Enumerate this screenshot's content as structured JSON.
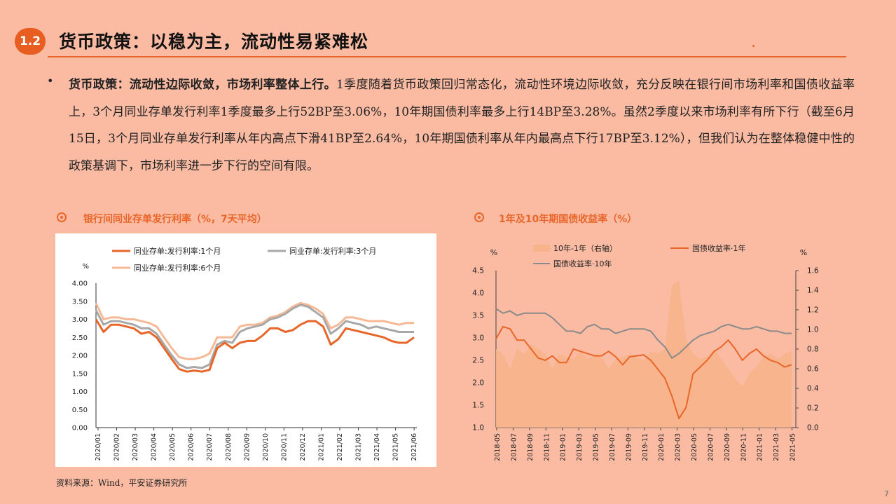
{
  "section_number": "1.2",
  "title": "货币政策：以稳为主，流动性易紧难松",
  "bullet": "•",
  "paragraph": {
    "bold": "货币政策：流动性边际收敛，市场利率整体上行。",
    "text": "1季度随着货币政策回归常态化，流动性环境边际收敛，充分反映在银行间市场利率和国债收益率上，3个月同业存单发行利率1季度最多上行52BP至3.06%，10年期国债利率最多上行14BP至3.28%。虽然2季度以来市场利率有所下行（截至6月15日，3个月同业存单发行利率从年内高点下滑41BP至2.64%，10年期国债利率从年内最高点下行17BP至3.12%），但我们认为在整体稳健中性的政策基调下，市场利率进一步下行的空间有限。"
  },
  "source": "资料来源：Wind，平安证券研究所",
  "page_number": "7",
  "colors": {
    "accent": "#e8662a",
    "gray": "#a8a8a8",
    "light_orange": "#f7b995",
    "area": "#f7b48a",
    "bg": "#fbbba3"
  },
  "chart_data": [
    {
      "type": "line",
      "title": "银行间同业存单发行利率（%，7天平均）",
      "ylabel": "%",
      "ylim": [
        0,
        4
      ],
      "yticks": [
        "0.00",
        "0.50",
        "1.00",
        "1.50",
        "2.00",
        "2.50",
        "3.00",
        "3.50",
        "4.00"
      ],
      "x_ticks": [
        "2020/01",
        "2020/02",
        "2020/03",
        "2020/04",
        "2020/05",
        "2020/06",
        "2020/07",
        "2020/08",
        "2020/09",
        "2020/10",
        "2020/11",
        "2020/12",
        "2021/01",
        "2021/02",
        "2021/03",
        "2021/04",
        "2021/05",
        "2021/06"
      ],
      "legend": "top",
      "series": [
        {
          "name": "同业存单:发行利率:1个月",
          "color": "#e8662a",
          "values": [
            3.0,
            2.65,
            2.85,
            2.85,
            2.8,
            2.75,
            2.6,
            2.65,
            2.5,
            2.2,
            1.9,
            1.62,
            1.55,
            1.58,
            1.55,
            1.6,
            2.2,
            2.35,
            2.2,
            2.35,
            2.4,
            2.4,
            2.55,
            2.75,
            2.75,
            2.65,
            2.7,
            2.85,
            2.95,
            2.95,
            2.8,
            2.3,
            2.45,
            2.75,
            2.7,
            2.65,
            2.6,
            2.55,
            2.5,
            2.4,
            2.35,
            2.35,
            2.5
          ]
        },
        {
          "name": "同业存单:发行利率:3个月",
          "color": "#a8a8a8",
          "values": [
            3.25,
            2.85,
            2.95,
            2.95,
            2.9,
            2.85,
            2.75,
            2.75,
            2.6,
            2.3,
            2.0,
            1.75,
            1.65,
            1.68,
            1.65,
            1.75,
            2.3,
            2.4,
            2.35,
            2.65,
            2.75,
            2.8,
            2.85,
            3.0,
            3.05,
            3.15,
            3.3,
            3.4,
            3.35,
            3.2,
            3.05,
            2.6,
            2.75,
            2.95,
            2.9,
            2.85,
            2.75,
            2.8,
            2.75,
            2.7,
            2.65,
            2.65,
            2.65
          ]
        },
        {
          "name": "同业存单:发行利率:6个月",
          "color": "#f7b995",
          "values": [
            3.45,
            3.0,
            3.05,
            3.05,
            3.0,
            3.0,
            2.95,
            2.9,
            2.8,
            2.5,
            2.2,
            1.95,
            1.9,
            1.9,
            1.95,
            2.05,
            2.5,
            2.5,
            2.5,
            2.8,
            2.85,
            2.85,
            2.9,
            3.05,
            3.1,
            3.2,
            3.35,
            3.45,
            3.4,
            3.3,
            3.15,
            2.75,
            2.85,
            3.05,
            3.05,
            3.0,
            2.95,
            2.95,
            2.95,
            2.9,
            2.85,
            2.9,
            2.9
          ]
        }
      ]
    },
    {
      "type": "line",
      "title": "1年及10年期国债收益率（%）",
      "ylabel_left": "%",
      "ylabel_right": "%",
      "ylim_left": [
        1.0,
        4.5
      ],
      "ylim_right": [
        0.0,
        1.6
      ],
      "yticks_left": [
        "1.0",
        "1.5",
        "2.0",
        "2.5",
        "3.0",
        "3.5",
        "4.0",
        "4.5"
      ],
      "yticks_right": [
        "0.0",
        "0.2",
        "0.4",
        "0.6",
        "0.8",
        "1.0",
        "1.2",
        "1.4",
        "1.6"
      ],
      "x_ticks": [
        "2018-05",
        "2018-07",
        "2018-09",
        "2018-11",
        "2019-01",
        "2019-03",
        "2019-05",
        "2019-07",
        "2019-09",
        "2019-11",
        "2020-01",
        "2020-03",
        "2020-05",
        "2020-07",
        "2020-09",
        "2020-11",
        "2021-01",
        "2021-03",
        "2021-05"
      ],
      "legend": "top",
      "series": [
        {
          "name": "10年-1年（右轴）",
          "type": "area",
          "axis": "right",
          "color": "#f7b48a",
          "values": [
            0.8,
            0.75,
            0.6,
            0.8,
            0.75,
            0.85,
            0.8,
            0.75,
            0.6,
            0.75,
            0.72,
            0.7,
            0.78,
            0.7,
            0.75,
            0.72,
            0.6,
            0.7,
            0.72,
            0.75,
            0.72,
            0.68,
            0.78,
            0.75,
            0.8,
            1.45,
            1.5,
            0.9,
            0.75,
            0.7,
            0.72,
            0.8,
            0.7,
            0.6,
            0.5,
            0.42,
            0.55,
            0.62,
            0.72,
            0.75,
            0.7,
            0.75,
            0.78
          ]
        },
        {
          "name": "国债收益率·1年",
          "axis": "left",
          "color": "#e8662a",
          "values": [
            2.98,
            3.25,
            3.2,
            2.95,
            2.95,
            2.75,
            2.55,
            2.5,
            2.6,
            2.45,
            2.45,
            2.75,
            2.7,
            2.65,
            2.6,
            2.6,
            2.7,
            2.58,
            2.4,
            2.58,
            2.6,
            2.62,
            2.5,
            2.3,
            2.1,
            1.7,
            1.2,
            1.45,
            2.2,
            2.35,
            2.5,
            2.7,
            2.8,
            2.95,
            2.75,
            2.5,
            2.65,
            2.75,
            2.6,
            2.5,
            2.45,
            2.35,
            2.4
          ]
        },
        {
          "name": "国债收益率·10年",
          "axis": "left",
          "color": "#8a8a8a",
          "values": [
            3.65,
            3.55,
            3.6,
            3.5,
            3.55,
            3.55,
            3.55,
            3.55,
            3.45,
            3.3,
            3.15,
            3.15,
            3.1,
            3.25,
            3.3,
            3.2,
            3.2,
            3.1,
            3.15,
            3.2,
            3.2,
            3.2,
            3.15,
            2.95,
            2.8,
            2.55,
            2.65,
            2.8,
            2.95,
            3.05,
            3.1,
            3.15,
            3.25,
            3.3,
            3.25,
            3.2,
            3.2,
            3.25,
            3.2,
            3.15,
            3.15,
            3.1,
            3.1
          ]
        }
      ]
    }
  ]
}
